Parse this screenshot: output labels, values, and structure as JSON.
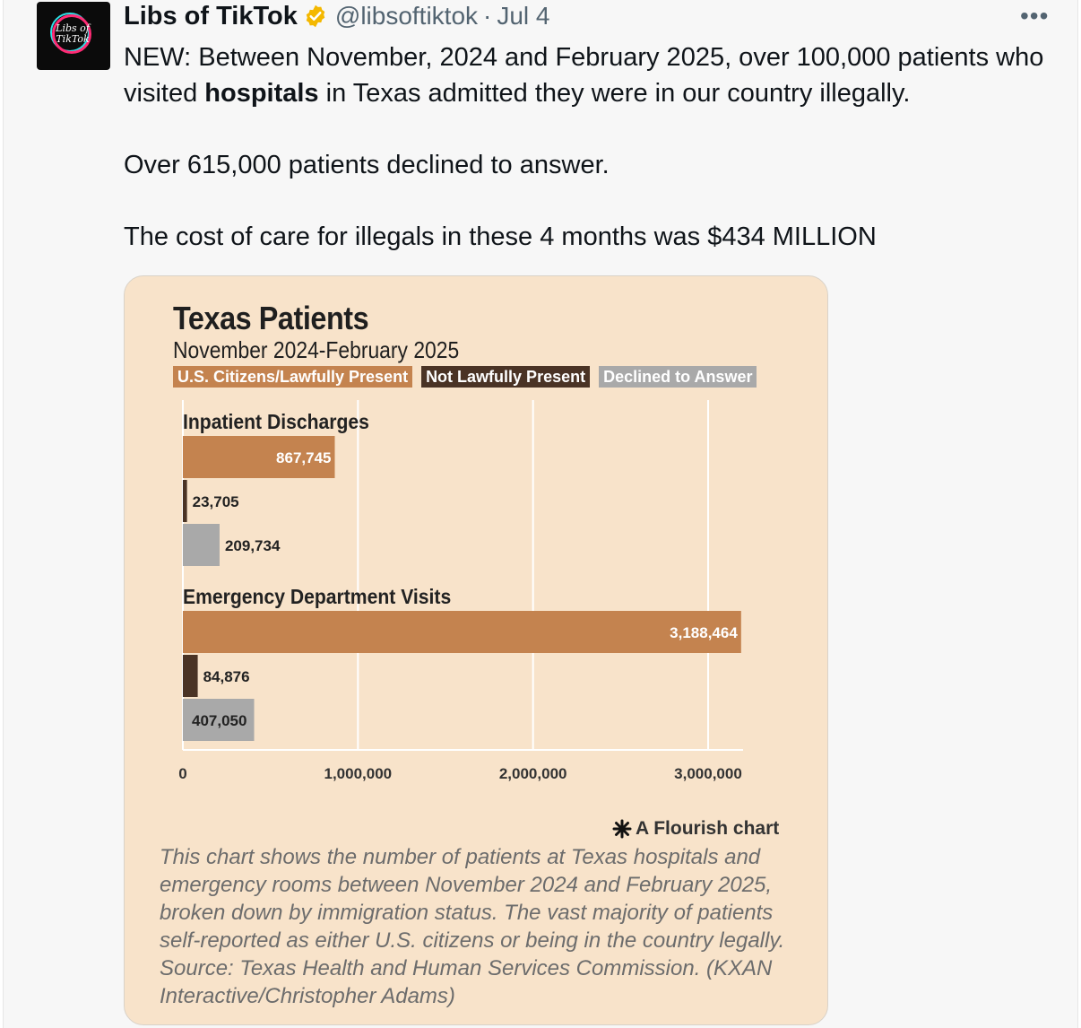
{
  "tweet": {
    "display_name": "Libs of TikTok",
    "handle": "@libsoftiktok",
    "date": "Jul 4",
    "avatar_text": "Libs of TikTok",
    "text_lines": {
      "p1_before": "NEW: Between November, 2024 and February 2025, over 100,000 patients who visited ",
      "p1_bold": "hospitals",
      "p1_after": " in Texas admitted they were in our country illegally.",
      "p2": "Over 615,000 patients declined to answer.",
      "p3": "The cost of care for illegals in these 4 months was $434 MILLION"
    },
    "colors": {
      "verified": "#f4b800"
    }
  },
  "chart_card": {
    "flourish_label": "A Flourish chart",
    "caption": "This chart shows the number of patients at Texas hospitals and emergency rooms between November 2024 and February 2025, broken down by immigration status. The vast majority of patients self-reported as either U.S. citizens or being in the country legally. Source: Texas Health and Human Services Commission. (KXAN Interactive/Christopher Adams)"
  },
  "chart_data": {
    "type": "bar",
    "orientation": "horizontal",
    "title": "Texas Patients",
    "subtitle": "November 2024-February 2025",
    "legend": [
      "U.S. Citizens/Lawfully Present",
      "Not Lawfully Present",
      "Declined to Answer"
    ],
    "legend_placement": "top-left",
    "groups": [
      {
        "label": "Inpatient Discharges",
        "values": [
          867745,
          23705,
          209734
        ],
        "labels": [
          "867,745",
          "23,705",
          "209,734"
        ]
      },
      {
        "label": "Emergency Department Visits",
        "values": [
          3188464,
          84876,
          407050
        ],
        "labels": [
          "3,188,464",
          "84,876",
          "407,050"
        ]
      }
    ],
    "xlim": [
      0,
      3200000
    ],
    "x_ticks": [
      0,
      1000000,
      2000000,
      3000000
    ],
    "x_tick_labels": [
      "0",
      "1,000,000",
      "2,000,000",
      "3,000,000"
    ],
    "grid": true,
    "colors": [
      "#c4834f",
      "#4a3325",
      "#a9a9a9"
    ]
  }
}
